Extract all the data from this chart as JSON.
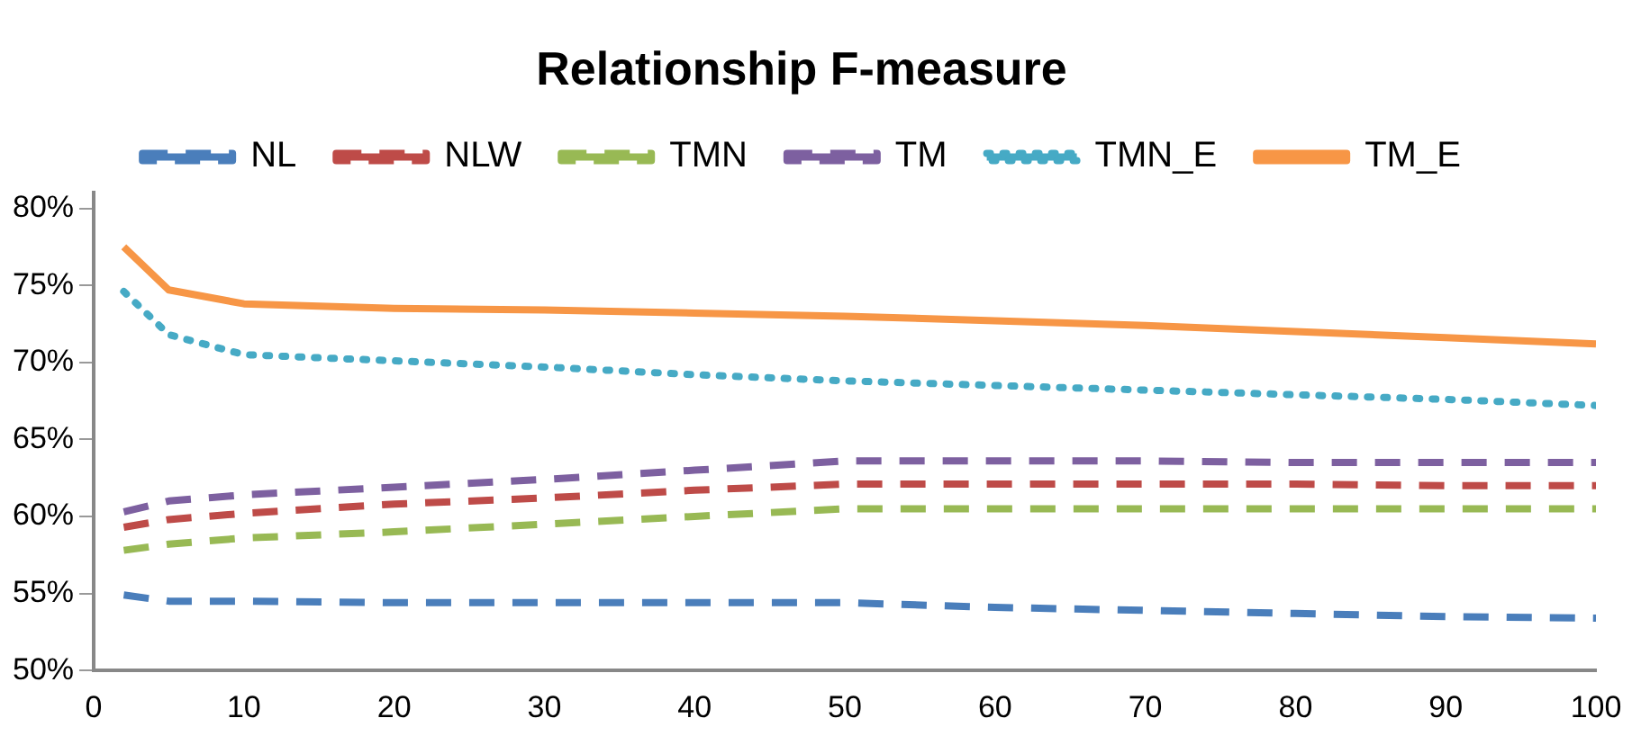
{
  "chart_data": {
    "type": "line",
    "title": "Relationship F-measure",
    "x": [
      2,
      5,
      10,
      20,
      30,
      40,
      50,
      60,
      70,
      80,
      90,
      100
    ],
    "series": [
      {
        "name": "NL",
        "color": "#4a7ebb",
        "line_style": "dashed",
        "values": [
          54.9,
          54.5,
          54.5,
          54.4,
          54.4,
          54.4,
          54.4,
          54.1,
          53.9,
          53.7,
          53.5,
          53.4
        ]
      },
      {
        "name": "NLW",
        "color": "#be4b48",
        "line_style": "dashed",
        "values": [
          59.3,
          59.8,
          60.2,
          60.8,
          61.2,
          61.7,
          62.1,
          62.1,
          62.1,
          62.1,
          62.0,
          62.0
        ]
      },
      {
        "name": "TMN",
        "color": "#98b954",
        "line_style": "dashed",
        "values": [
          57.8,
          58.2,
          58.6,
          59.0,
          59.5,
          60.0,
          60.5,
          60.5,
          60.5,
          60.5,
          60.5,
          60.5
        ]
      },
      {
        "name": "TM",
        "color": "#7d60a0",
        "line_style": "dashed",
        "values": [
          60.3,
          61.0,
          61.4,
          61.9,
          62.4,
          63.0,
          63.6,
          63.6,
          63.6,
          63.5,
          63.5,
          63.5
        ]
      },
      {
        "name": "TMN_E",
        "color": "#46aac5",
        "line_style": "dotted",
        "values": [
          74.6,
          71.8,
          70.5,
          70.1,
          69.7,
          69.2,
          68.8,
          68.5,
          68.2,
          67.9,
          67.6,
          67.2
        ]
      },
      {
        "name": "TM_E",
        "color": "#f79646",
        "line_style": "solid",
        "values": [
          77.5,
          74.7,
          73.8,
          73.5,
          73.4,
          73.2,
          73.0,
          72.7,
          72.4,
          72.0,
          71.6,
          71.2
        ]
      }
    ],
    "xlim": [
      0,
      100
    ],
    "xticks": [
      0,
      10,
      20,
      30,
      40,
      50,
      60,
      70,
      80,
      90,
      100
    ],
    "ylim": [
      50,
      81
    ],
    "yticks": [
      {
        "value": 50,
        "label": "50%"
      },
      {
        "value": 55,
        "label": "55%"
      },
      {
        "value": 60,
        "label": "60%"
      },
      {
        "value": 65,
        "label": "65%"
      },
      {
        "value": 70,
        "label": "70%"
      },
      {
        "value": 75,
        "label": "75%"
      },
      {
        "value": 80,
        "label": "80%"
      }
    ],
    "grid": false,
    "legend": "top",
    "marker": "none"
  }
}
